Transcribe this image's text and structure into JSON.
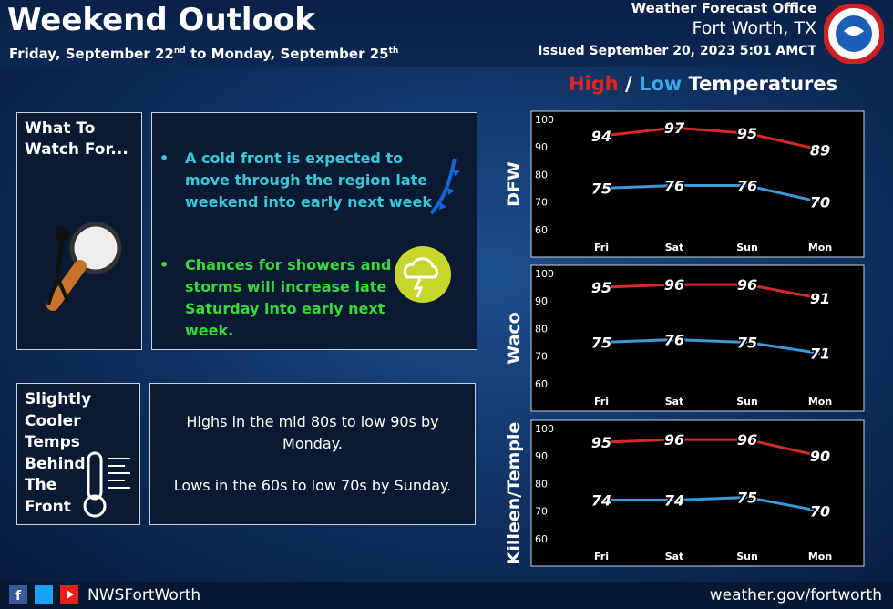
{
  "header": {
    "title": "Weekend Outlook",
    "subtitle": [
      "Friday, September 22",
      "nd",
      " to Monday, September 25",
      "th"
    ],
    "office": "Weather Forecast Office",
    "location": "Fort Worth, TX",
    "issued": "Issued September 20, 2023 5:01 AMCT"
  },
  "temps_header": {
    "separator": "/",
    "rest": "Temperatures"
  },
  "watch": {
    "label": "What To Watch For...",
    "bullets": [
      "A cold front is expected to move through the region late weekend into early next week",
      "Chances for showers and storms will increase late Saturday into early next week."
    ]
  },
  "cooler": {
    "label": [
      "Slightly",
      "Cooler",
      "Temps",
      "Behind",
      "The",
      "Front"
    ],
    "text": [
      "Highs in the mid 80s to low 90s by Monday.",
      "Lows in the 60s to low 70s by Sunday."
    ]
  },
  "footer": {
    "handle": "NWSFortWorth",
    "url": "weather.gov/fortworth"
  },
  "chart_data": [
    {
      "type": "line",
      "title": "DFW",
      "categories": [
        "Fri",
        "Sat",
        "Sun",
        "Mon"
      ],
      "ylim": [
        50,
        103
      ],
      "yticks": [
        60,
        70,
        80,
        90,
        100
      ],
      "series": [
        {
          "name": "High",
          "color": "#d42a2a",
          "values": [
            94,
            97,
            95,
            89
          ]
        },
        {
          "name": "Low",
          "color": "#3a9ad8",
          "values": [
            75,
            76,
            76,
            70
          ]
        }
      ]
    },
    {
      "type": "line",
      "title": "Waco",
      "categories": [
        "Fri",
        "Sat",
        "Sun",
        "Mon"
      ],
      "ylim": [
        50,
        103
      ],
      "yticks": [
        60,
        70,
        80,
        90,
        100
      ],
      "series": [
        {
          "color": "#d42a2a",
          "values": [
            95,
            96,
            96,
            91
          ]
        },
        {
          "color": "#3a9ad8",
          "values": [
            75,
            76,
            75,
            71
          ]
        }
      ]
    },
    {
      "type": "line",
      "title": "Killeen/Temple",
      "categories": [
        "Fri",
        "Sat",
        "Sun",
        "Mon"
      ],
      "ylim": [
        50,
        103
      ],
      "yticks": [
        60,
        70,
        80,
        90,
        100
      ],
      "series": [
        {
          "color": "#d42a2a",
          "values": [
            95,
            96,
            96,
            90
          ]
        },
        {
          "color": "#3a9ad8",
          "values": [
            74,
            74,
            75,
            70
          ]
        }
      ]
    }
  ]
}
